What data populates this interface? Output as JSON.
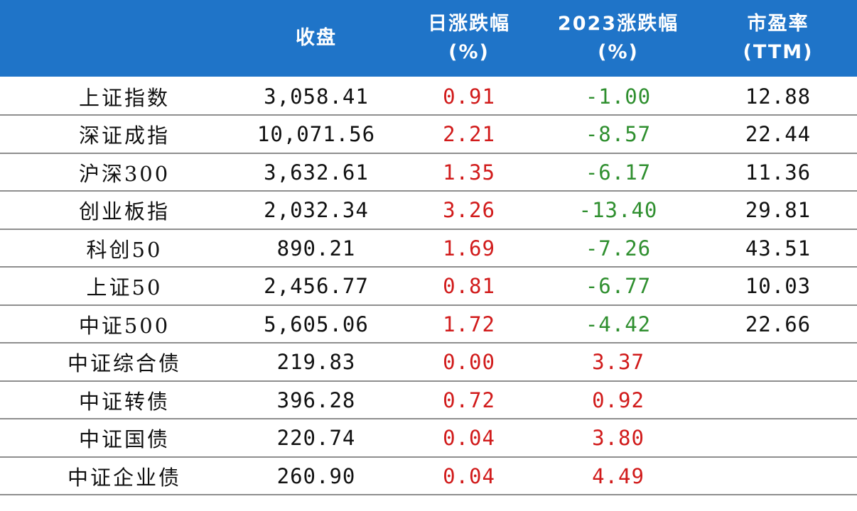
{
  "header": {
    "col_close": "收盘",
    "col_daily_line1": "日涨跌幅",
    "col_daily_line2": "(%)",
    "col_ytd_line1": "2023涨跌幅",
    "col_ytd_line2": "(%)",
    "col_pe_line1": "市盈率",
    "col_pe_line2": "(TTM)"
  },
  "colors": {
    "header_bg": "#1f74c8",
    "positive": "#d11b1b",
    "negative": "#2f8f2f"
  },
  "rows": [
    {
      "name": "上证指数",
      "close": "3,058.41",
      "daily": "0.91",
      "ytd": "-1.00",
      "pe": "12.88"
    },
    {
      "name": "深证成指",
      "close": "10,071.56",
      "daily": "2.21",
      "ytd": "-8.57",
      "pe": "22.44"
    },
    {
      "name": "沪深300",
      "close": "3,632.61",
      "daily": "1.35",
      "ytd": "-6.17",
      "pe": "11.36"
    },
    {
      "name": "创业板指",
      "close": "2,032.34",
      "daily": "3.26",
      "ytd": "-13.40",
      "pe": "29.81"
    },
    {
      "name": "科创50",
      "close": "890.21",
      "daily": "1.69",
      "ytd": "-7.26",
      "pe": "43.51"
    },
    {
      "name": "上证50",
      "close": "2,456.77",
      "daily": "0.81",
      "ytd": "-6.77",
      "pe": "10.03"
    },
    {
      "name": "中证500",
      "close": "5,605.06",
      "daily": "1.72",
      "ytd": "-4.42",
      "pe": "22.66"
    },
    {
      "name": "中证综合债",
      "close": "219.83",
      "daily": "0.00",
      "ytd": "3.37",
      "pe": ""
    },
    {
      "name": "中证转债",
      "close": "396.28",
      "daily": "0.72",
      "ytd": "0.92",
      "pe": ""
    },
    {
      "name": "中证国债",
      "close": "220.74",
      "daily": "0.04",
      "ytd": "3.80",
      "pe": ""
    },
    {
      "name": "中证企业债",
      "close": "260.90",
      "daily": "0.04",
      "ytd": "4.49",
      "pe": ""
    }
  ]
}
